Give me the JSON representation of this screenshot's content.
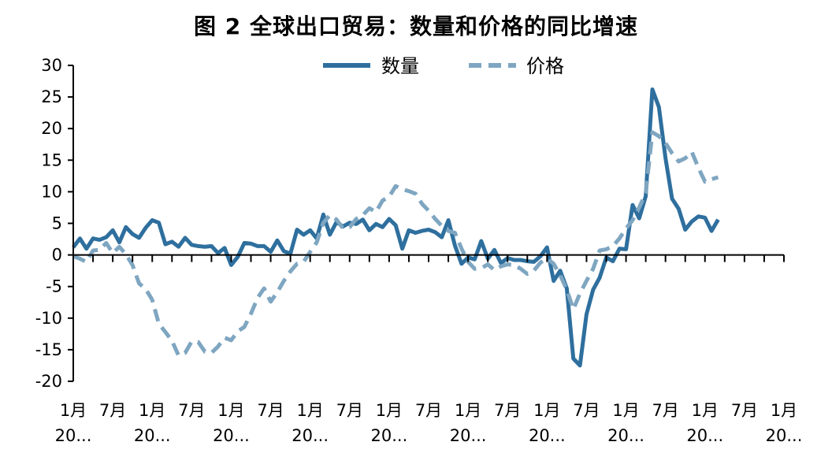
{
  "title": "图 2 全球出口贸易：数量和价格的同比增速",
  "legend": {
    "position": "top-center",
    "items": [
      "数量",
      "价格"
    ]
  },
  "colors": {
    "数量": "#2e6f9e",
    "价格": "#7fa6c1"
  },
  "chart_data": {
    "type": "line",
    "title": "图 2 全球出口贸易：数量和价格的同比增速",
    "ylim": [
      -20,
      30
    ],
    "yticks": [
      "30",
      "25",
      "20",
      "15",
      "10",
      "5",
      "0",
      "-5",
      "-10",
      "-15",
      "-20"
    ],
    "xtick_labels": [
      [
        "1月",
        "20..."
      ],
      [
        "7月",
        ""
      ],
      [
        "1月",
        "20..."
      ],
      [
        "7月",
        ""
      ],
      [
        "1月",
        "20..."
      ],
      [
        "7月",
        ""
      ],
      [
        "1月",
        "20..."
      ],
      [
        "7月",
        ""
      ],
      [
        "1月",
        "20..."
      ],
      [
        "7月",
        ""
      ],
      [
        "1月",
        "20..."
      ],
      [
        "7月",
        ""
      ],
      [
        "1月",
        "20..."
      ],
      [
        "7月",
        ""
      ],
      [
        "1月",
        "20..."
      ],
      [
        "7月",
        ""
      ],
      [
        "1月",
        "20..."
      ],
      [
        "7月",
        ""
      ],
      [
        "1月",
        "20..."
      ]
    ],
    "grid": false,
    "series": [
      {
        "name": "数量",
        "style": "solid",
        "values": [
          1.2,
          2.6,
          1.0,
          2.6,
          2.4,
          2.8,
          3.9,
          2.0,
          4.4,
          3.3,
          2.7,
          4.3,
          5.5,
          5.1,
          1.7,
          2.1,
          1.3,
          2.7,
          1.6,
          1.4,
          1.3,
          1.4,
          0.3,
          1.1,
          -1.6,
          -0.3,
          1.9,
          1.8,
          1.4,
          1.4,
          0.5,
          2.3,
          0.6,
          0.2,
          4.0,
          3.2,
          3.9,
          2.6,
          6.4,
          3.2,
          5.2,
          4.5,
          5.1,
          4.9,
          5.6,
          3.9,
          4.9,
          4.4,
          5.7,
          4.7,
          1.0,
          3.9,
          3.5,
          3.8,
          4.0,
          3.6,
          2.8,
          5.5,
          1.5,
          -1.4,
          -0.4,
          -0.7,
          2.2,
          -0.6,
          0.8,
          -1.3,
          -0.5,
          -0.8,
          -0.8,
          -1.0,
          -1.1,
          -0.2,
          1.2,
          -4.1,
          -2.5,
          -5.3,
          -16.4,
          -17.5,
          -9.4,
          -5.5,
          -3.6,
          -0.4,
          -1.0,
          1.0,
          0.9,
          7.9,
          5.8,
          9.3,
          26.2,
          23.4,
          15.3,
          8.9,
          7.3,
          4.0,
          5.3,
          6.1,
          5.9,
          3.8,
          5.6
        ]
      },
      {
        "name": "价格",
        "style": "dashed",
        "values": [
          -0.2,
          -0.6,
          -1.1,
          0.7,
          0.8,
          1.9,
          0.3,
          1.3,
          0.1,
          -1.6,
          -4.5,
          -5.4,
          -7.1,
          -10.9,
          -12.2,
          -13.6,
          -15.9,
          -15.5,
          -13.7,
          -13.8,
          -15.3,
          -15.5,
          -14.5,
          -13.1,
          -13.5,
          -12.1,
          -11.4,
          -9.3,
          -6.8,
          -5.3,
          -7.4,
          -5.9,
          -4.1,
          -2.6,
          -1.4,
          -1.1,
          0.5,
          2.0,
          5.1,
          6.3,
          5.6,
          4.2,
          4.4,
          5.7,
          6.3,
          7.4,
          6.8,
          8.6,
          9.2,
          10.9,
          10.4,
          10.1,
          9.7,
          8.1,
          7.0,
          5.7,
          4.6,
          3.8,
          3.5,
          1.0,
          -1.1,
          -2.2,
          -2.1,
          -1.5,
          -2.4,
          -1.8,
          -1.5,
          -1.6,
          -2.2,
          -3.0,
          -2.5,
          -1.2,
          -0.6,
          -1.4,
          -3.2,
          -5.5,
          -8.6,
          -6.1,
          -4.1,
          -2.2,
          0.7,
          0.9,
          1.4,
          2.6,
          4.2,
          5.5,
          7.5,
          9.8,
          19.4,
          18.8,
          17.7,
          16.1,
          14.8,
          15.3,
          16.3,
          13.8,
          11.6,
          12.0,
          12.3
        ]
      }
    ]
  }
}
